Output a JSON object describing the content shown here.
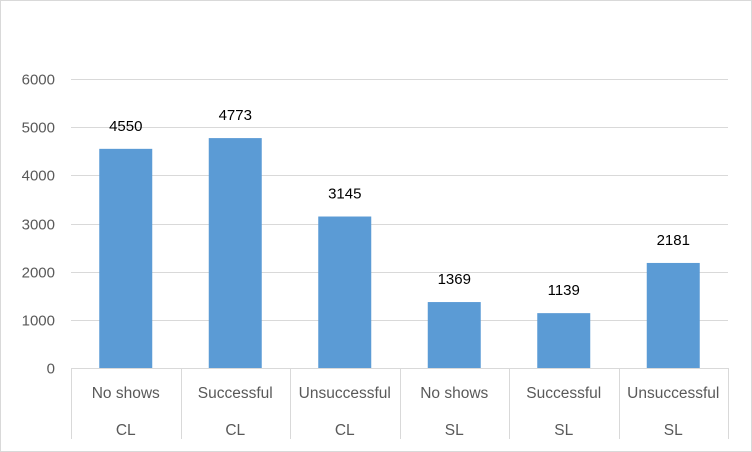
{
  "chart_data": {
    "type": "bar",
    "categories": [
      {
        "label": "No shows",
        "group": "CL"
      },
      {
        "label": "Successful",
        "group": "CL"
      },
      {
        "label": "Unsuccessful",
        "group": "CL"
      },
      {
        "label": "No shows",
        "group": "SL"
      },
      {
        "label": "Successful",
        "group": "SL"
      },
      {
        "label": "Unsuccessful",
        "group": "SL"
      }
    ],
    "values": [
      4550,
      4773,
      3145,
      1369,
      1139,
      2181
    ],
    "title": "",
    "xlabel": "",
    "ylabel": "",
    "ylim": [
      0,
      6000
    ],
    "yticks": [
      0,
      1000,
      2000,
      3000,
      4000,
      5000,
      6000
    ],
    "grid": true,
    "legend": "none",
    "colors": {
      "bar": "#5b9bd5",
      "grid": "#d9d9d9",
      "axis_text": "#595959",
      "data_label": "#000000"
    }
  }
}
